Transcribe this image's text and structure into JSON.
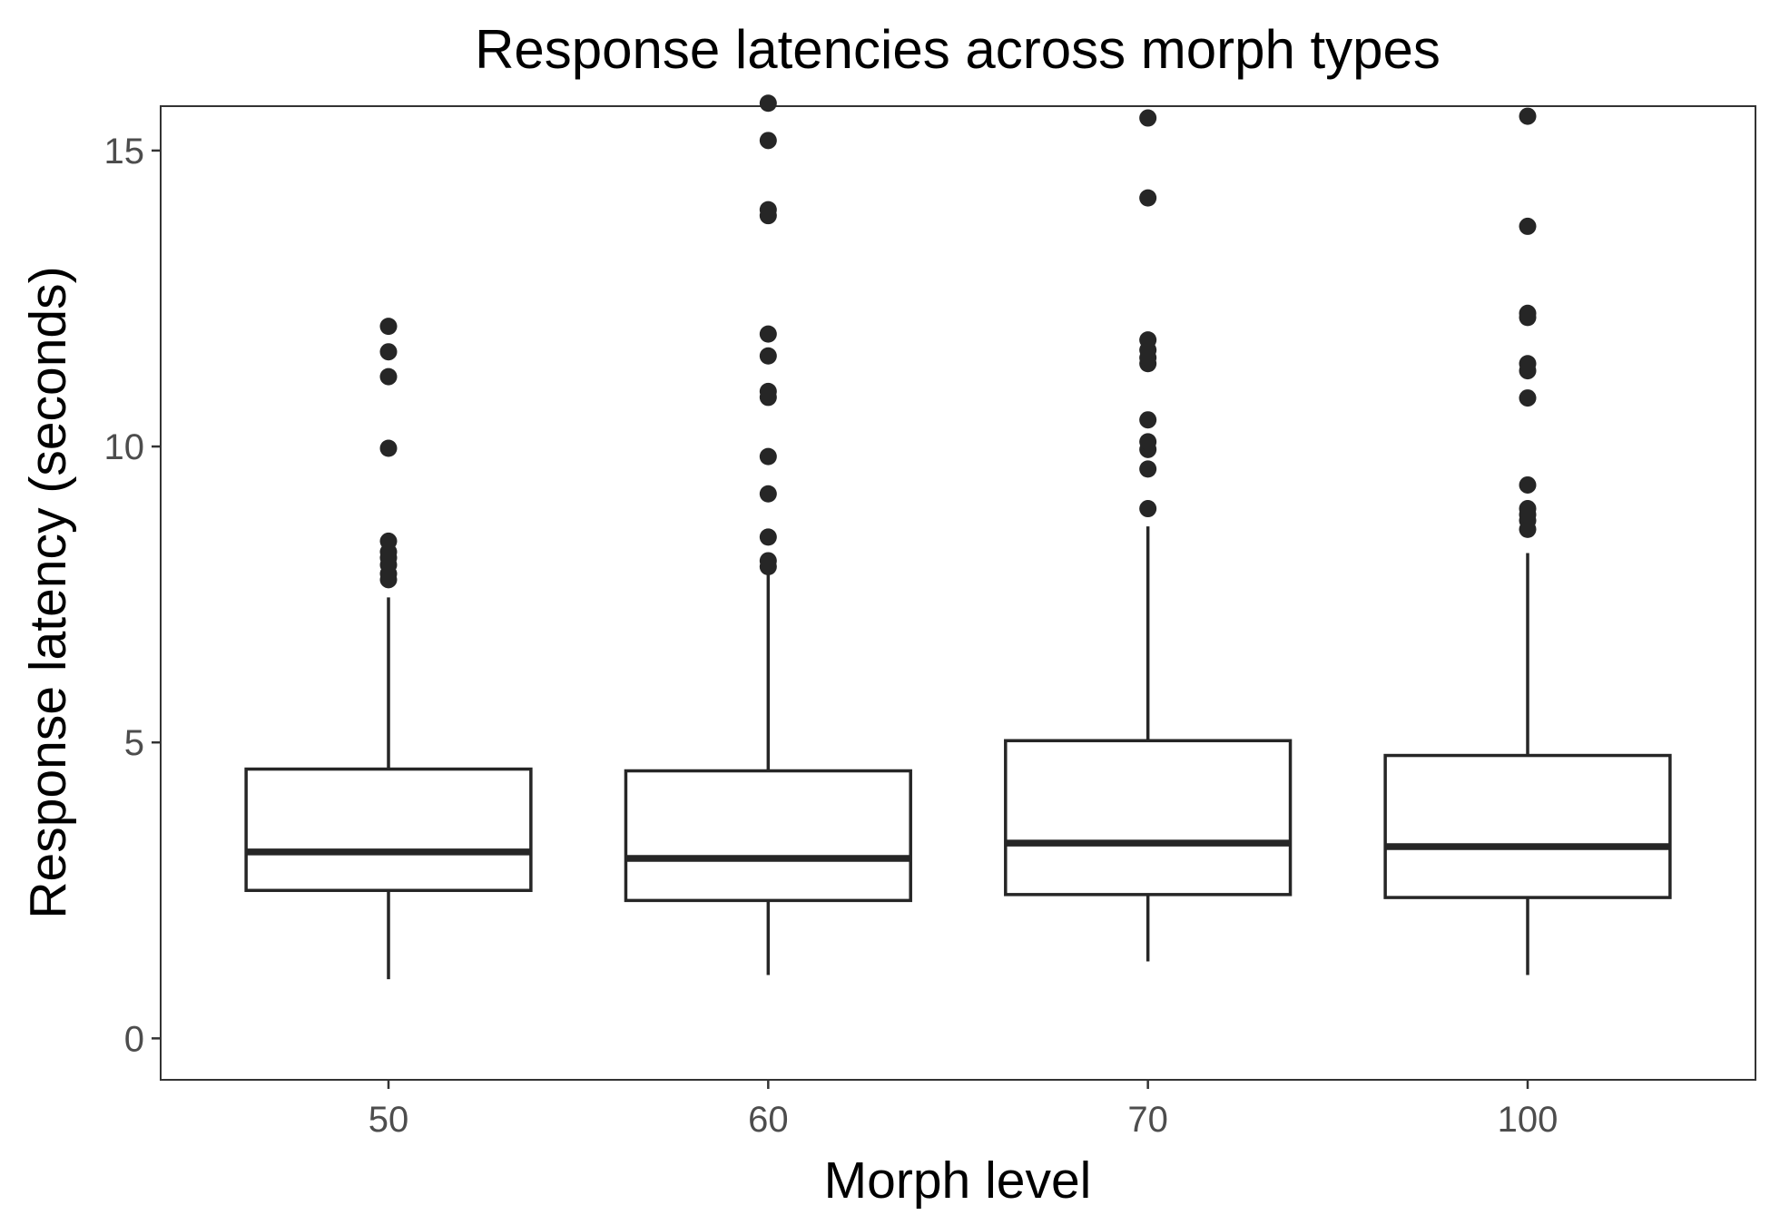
{
  "chart_data": {
    "type": "box",
    "title": "Response latencies across morph types",
    "xlabel": "Morph level",
    "ylabel": "Response latency (seconds)",
    "ylim": [
      -0.7,
      15.75
    ],
    "yticks": [
      0,
      5,
      10,
      15
    ],
    "grid": false,
    "legend": "none",
    "categories": [
      "50",
      "60",
      "70",
      "100"
    ],
    "boxes": [
      {
        "category": "50",
        "min": 1.0,
        "q1": 2.5,
        "median": 3.15,
        "q3": 4.55,
        "max": 7.45,
        "outliers": [
          7.75,
          7.85,
          8.0,
          8.12,
          8.22,
          8.4,
          9.97,
          11.18,
          11.6,
          12.03
        ]
      },
      {
        "category": "60",
        "min": 1.07,
        "q1": 2.33,
        "median": 3.04,
        "q3": 4.52,
        "max": 7.85,
        "outliers": [
          7.97,
          8.07,
          8.47,
          9.2,
          9.83,
          10.83,
          10.93,
          11.53,
          11.9,
          13.9,
          14.0,
          15.17,
          15.8
        ]
      },
      {
        "category": "70",
        "min": 1.3,
        "q1": 2.43,
        "median": 3.3,
        "q3": 5.03,
        "max": 8.65,
        "outliers": [
          8.95,
          9.62,
          9.95,
          10.08,
          10.45,
          11.4,
          11.5,
          11.63,
          11.8,
          14.2,
          15.55
        ]
      },
      {
        "category": "100",
        "min": 1.07,
        "q1": 2.38,
        "median": 3.24,
        "q3": 4.78,
        "max": 8.2,
        "outliers": [
          8.6,
          8.75,
          8.85,
          8.95,
          9.35,
          10.82,
          11.28,
          11.4,
          12.18,
          12.25,
          13.72,
          15.58
        ]
      }
    ],
    "colors": {
      "mark": "#262626",
      "panel_border": "#333333",
      "tick_label": "#4d4d4d"
    }
  }
}
